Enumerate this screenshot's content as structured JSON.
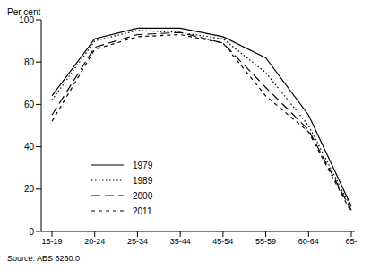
{
  "chart_data": {
    "type": "line",
    "y_label": "Per cent",
    "source": "Source: ABS 6260.0",
    "categories": [
      "15-19",
      "20-24",
      "25-34",
      "35-44",
      "45-54",
      "55-59",
      "60-64",
      "65-"
    ],
    "series": [
      {
        "name": "1979",
        "color": "#000000",
        "line_style": "solid",
        "values": [
          64,
          91,
          96,
          96,
          92,
          82,
          55,
          12
        ]
      },
      {
        "name": "1989",
        "color": "#000000",
        "line_style": "dotted",
        "values": [
          62,
          90,
          95,
          94,
          91,
          75,
          50,
          11
        ]
      },
      {
        "name": "2000",
        "color": "#000000",
        "line_style": "dashed",
        "values": [
          55,
          87,
          93,
          94,
          89,
          68,
          48,
          10
        ]
      },
      {
        "name": "2011",
        "color": "#000000",
        "line_style": "short_dash",
        "values": [
          52,
          86,
          92,
          93,
          89,
          64,
          47,
          9
        ]
      }
    ],
    "ylim": [
      0,
      100
    ],
    "yticks": [
      0,
      20,
      40,
      60,
      80,
      100
    ],
    "grid": false,
    "legend": "left"
  }
}
